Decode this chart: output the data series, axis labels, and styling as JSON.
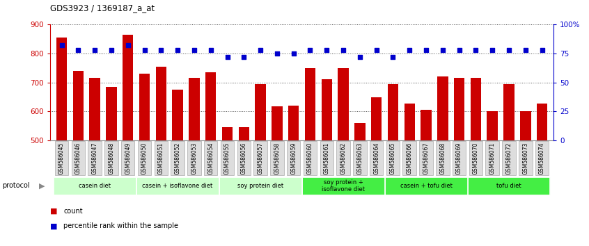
{
  "title": "GDS3923 / 1369187_a_at",
  "samples": [
    "GSM586045",
    "GSM586046",
    "GSM586047",
    "GSM586048",
    "GSM586049",
    "GSM586050",
    "GSM586051",
    "GSM586052",
    "GSM586053",
    "GSM586054",
    "GSM586055",
    "GSM586056",
    "GSM586057",
    "GSM586058",
    "GSM586059",
    "GSM586060",
    "GSM586061",
    "GSM586062",
    "GSM586063",
    "GSM586064",
    "GSM586065",
    "GSM586066",
    "GSM586067",
    "GSM586068",
    "GSM586069",
    "GSM586070",
    "GSM586071",
    "GSM586072",
    "GSM586073",
    "GSM586074"
  ],
  "counts": [
    855,
    740,
    715,
    685,
    865,
    730,
    755,
    675,
    715,
    735,
    545,
    545,
    695,
    618,
    620,
    750,
    710,
    750,
    560,
    648,
    695,
    627,
    605,
    720,
    717,
    715,
    600,
    695,
    600,
    628
  ],
  "percentile_ranks": [
    82,
    78,
    78,
    78,
    82,
    78,
    78,
    78,
    78,
    78,
    72,
    72,
    78,
    75,
    75,
    78,
    78,
    78,
    72,
    78,
    72,
    78,
    78,
    78,
    78,
    78,
    78,
    78,
    78,
    78
  ],
  "groups": [
    {
      "label": "casein diet",
      "start": 0,
      "end": 4,
      "color": "#ccffcc"
    },
    {
      "label": "casein + isoflavone diet",
      "start": 5,
      "end": 9,
      "color": "#ccffcc"
    },
    {
      "label": "soy protein diet",
      "start": 10,
      "end": 14,
      "color": "#ccffcc"
    },
    {
      "label": "soy protein +\nisoflavone diet",
      "start": 15,
      "end": 19,
      "color": "#44ee44"
    },
    {
      "label": "casein + tofu diet",
      "start": 20,
      "end": 24,
      "color": "#44ee44"
    },
    {
      "label": "tofu diet",
      "start": 25,
      "end": 29,
      "color": "#44ee44"
    }
  ],
  "ylim": [
    500,
    900
  ],
  "yticks": [
    500,
    600,
    700,
    800,
    900
  ],
  "right_ytick_labels": [
    "0",
    "25",
    "50",
    "75",
    "100%"
  ],
  "bar_color": "#cc0000",
  "dot_color": "#0000cc",
  "plot_bg": "#ffffff",
  "grid_color": "#555555",
  "xlabel_bg": "#dddddd"
}
